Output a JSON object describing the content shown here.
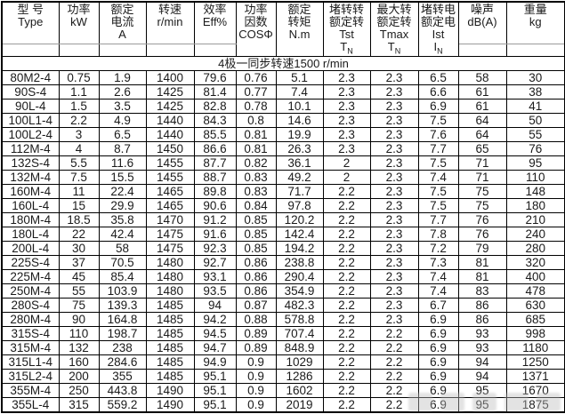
{
  "chart_data": {
    "type": "table",
    "group_label": "4极一同步转速1500 r/min",
    "columns": [
      {
        "id": "type",
        "label_lines": [
          "型 号",
          "Type"
        ],
        "split": true
      },
      {
        "id": "power",
        "label_lines": [
          "功率",
          "kW"
        ],
        "split": true
      },
      {
        "id": "rated-current",
        "label_lines": [
          "额定",
          "电流",
          "A"
        ],
        "split": true
      },
      {
        "id": "speed",
        "label_lines": [
          "转速",
          "r/min"
        ],
        "split": true
      },
      {
        "id": "efficiency",
        "label_lines": [
          "效率",
          "Eff%"
        ],
        "split": true
      },
      {
        "id": "power-factor",
        "label_lines": [
          "功率",
          "因数",
          "COSΦ"
        ],
        "split": false
      },
      {
        "id": "rated-torque",
        "label_lines": [
          "额定",
          "转矩",
          "N.m"
        ],
        "split": false
      },
      {
        "id": "locked-rotor-torque-ratio",
        "label_lines": [
          "堵转转",
          "额定转",
          "Tst"
        ],
        "ratio": {
          "base": "T",
          "sub": "N"
        },
        "split": false
      },
      {
        "id": "max-torque-ratio",
        "label_lines": [
          "最大转",
          "额定转",
          "Tmax"
        ],
        "ratio": {
          "base": "T",
          "sub": "N"
        },
        "split": false
      },
      {
        "id": "locked-rotor-current-ratio",
        "label_lines": [
          "堵转电",
          "额定电",
          "Ist"
        ],
        "ratio": {
          "base": "I",
          "sub": "N"
        },
        "split": false
      },
      {
        "id": "noise",
        "label_lines": [
          "噪声",
          "dB(A)"
        ],
        "split": true
      },
      {
        "id": "weight",
        "label_lines": [
          "重量",
          "kg"
        ],
        "split": true
      }
    ],
    "rows": [
      [
        "80M2-4",
        "0.75",
        "1.9",
        "1400",
        "79.6",
        "0.76",
        "5.1",
        "2.3",
        "2.3",
        "6.5",
        "58",
        "30"
      ],
      [
        "90S-4",
        "1.1",
        "2.6",
        "1425",
        "81.4",
        "0.77",
        "7.4",
        "2.3",
        "2.3",
        "6.6",
        "61",
        "38"
      ],
      [
        "90L-4",
        "1.5",
        "3.5",
        "1425",
        "82.8",
        "0.78",
        "10.1",
        "2.3",
        "2.3",
        "6.9",
        "61",
        "41"
      ],
      [
        "100L1-4",
        "2.2",
        "4.9",
        "1440",
        "84.3",
        "0.8",
        "14.6",
        "2.3",
        "2.3",
        "7.5",
        "64",
        "50"
      ],
      [
        "100L2-4",
        "3",
        "6.5",
        "1440",
        "85.5",
        "0.81",
        "19.9",
        "2.3",
        "2.3",
        "7.6",
        "64",
        "55"
      ],
      [
        "112M-4",
        "4",
        "8.7",
        "1450",
        "86.6",
        "0.81",
        "26.3",
        "2.3",
        "2.3",
        "7.7",
        "65",
        "76"
      ],
      [
        "132S-4",
        "5.5",
        "11.6",
        "1455",
        "87.7",
        "0.82",
        "36.1",
        "2",
        "2.3",
        "7.5",
        "71",
        "95"
      ],
      [
        "132M-4",
        "7.5",
        "15.5",
        "1455",
        "88.7",
        "0.83",
        "49.2",
        "2",
        "2.3",
        "7.4",
        "71",
        "110"
      ],
      [
        "160M-4",
        "11",
        "22.4",
        "1465",
        "89.8",
        "0.83",
        "71.7",
        "2.2",
        "2.3",
        "7.5",
        "75",
        "148"
      ],
      [
        "160L-4",
        "15",
        "29.9",
        "1465",
        "90.6",
        "0.84",
        "97.8",
        "2.2",
        "2.3",
        "7.5",
        "75",
        "180"
      ],
      [
        "180M-4",
        "18.5",
        "35.8",
        "1470",
        "91.2",
        "0.85",
        "120.2",
        "2.2",
        "2.3",
        "7.7",
        "76",
        "210"
      ],
      [
        "180L-4",
        "22",
        "42.4",
        "1475",
        "91.6",
        "0.85",
        "142.4",
        "2.2",
        "2.3",
        "7.8",
        "76",
        "240"
      ],
      [
        "200L-4",
        "30",
        "58",
        "1475",
        "92.3",
        "0.85",
        "194.2",
        "2.2",
        "2.3",
        "7.2",
        "79",
        "280"
      ],
      [
        "225S-4",
        "37",
        "70.5",
        "1480",
        "92.7",
        "0.86",
        "238.8",
        "2.2",
        "2.3",
        "7.3",
        "81",
        "320"
      ],
      [
        "225M-4",
        "45",
        "85.4",
        "1480",
        "93.1",
        "0.86",
        "290.4",
        "2.2",
        "2.3",
        "7.4",
        "81",
        "400"
      ],
      [
        "250M-4",
        "55",
        "103.9",
        "1480",
        "93.5",
        "0.86",
        "354.9",
        "2.2",
        "2.3",
        "7.4",
        "83",
        "478"
      ],
      [
        "280S-4",
        "75",
        "139.3",
        "1485",
        "94",
        "0.87",
        "482.3",
        "2.2",
        "2.3",
        "6.7",
        "86",
        "630"
      ],
      [
        "280M-4",
        "90",
        "164.8",
        "1485",
        "94.2",
        "0.88",
        "578.8",
        "2.2",
        "2.3",
        "6.9",
        "86",
        "685"
      ],
      [
        "315S-4",
        "110",
        "198.7",
        "1485",
        "94.5",
        "0.89",
        "707.4",
        "2.2",
        "2.2",
        "6.9",
        "93",
        "998"
      ],
      [
        "315M-4",
        "132",
        "238",
        "1485",
        "94.7",
        "0.89",
        "848.9",
        "2.2",
        "2.2",
        "6.9",
        "93",
        "1180"
      ],
      [
        "315L1-4",
        "160",
        "284.6",
        "1485",
        "94.9",
        "0.9",
        "1029",
        "2.2",
        "2.2",
        "6.9",
        "94",
        "1250"
      ],
      [
        "315L2-4",
        "200",
        "355",
        "1485",
        "95.1",
        "0.9",
        "1286",
        "2.2",
        "2.2",
        "6.9",
        "94",
        "1371"
      ],
      [
        "355M-4",
        "250",
        "443.8",
        "1490",
        "95.1",
        "0.9",
        "1602",
        "2.2",
        "2.2",
        "6.9",
        "95",
        "1670"
      ],
      [
        "355L-4",
        "315",
        "559.2",
        "1490",
        "95.1",
        "0.9",
        "2019",
        "2.2",
        "2.2",
        "6.9",
        "95",
        "1875"
      ]
    ]
  },
  "colors": {
    "border": "#000000",
    "text": "#1a1a1a",
    "background": "#ffffff",
    "header_split_line": "#9a9a9a",
    "watermark": "#bdbdbd"
  }
}
